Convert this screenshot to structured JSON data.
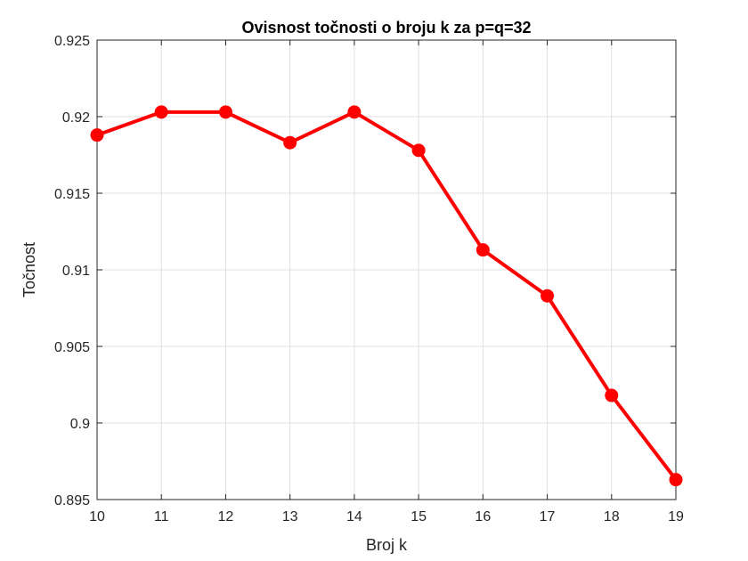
{
  "chart_data": {
    "type": "line",
    "title": "Ovisnost točnosti o broju k za p=q=32",
    "xlabel": "Broj k",
    "ylabel": "Točnost",
    "xlim": [
      10,
      19
    ],
    "ylim": [
      0.895,
      0.925
    ],
    "grid": true,
    "x_ticks": [
      "10",
      "11",
      "12",
      "13",
      "14",
      "15",
      "16",
      "17",
      "18",
      "19"
    ],
    "y_ticks": [
      "0.895",
      "0.9",
      "0.905",
      "0.91",
      "0.915",
      "0.92",
      "0.925"
    ],
    "series": [
      {
        "color": "#ff0000",
        "x": [
          10,
          11,
          12,
          13,
          14,
          15,
          16,
          17,
          18,
          19
        ],
        "y": [
          0.9188,
          0.9203,
          0.9203,
          0.9183,
          0.9203,
          0.9178,
          0.9113,
          0.9083,
          0.9018,
          0.8963
        ]
      }
    ]
  }
}
